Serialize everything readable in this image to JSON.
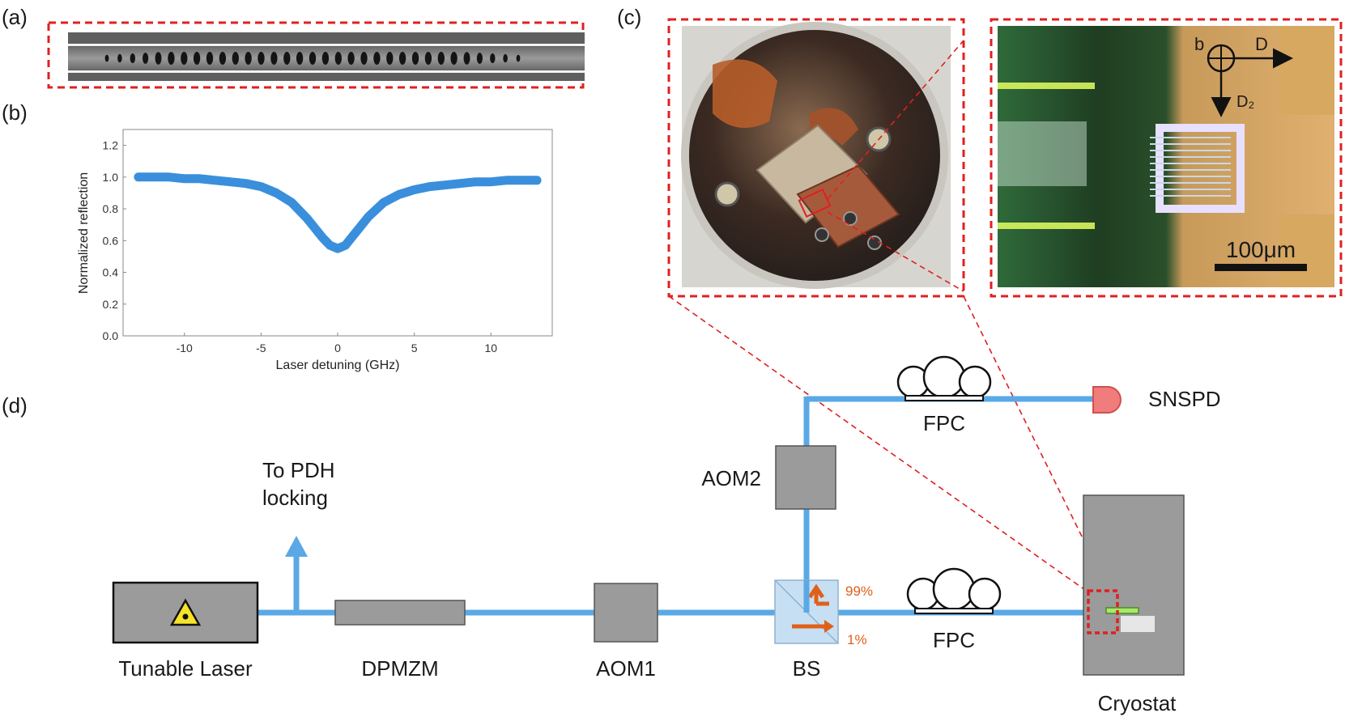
{
  "panels": {
    "a": "(a)",
    "b": "(b)",
    "c": "(c)",
    "d": "(d)"
  },
  "chart_data": {
    "type": "line",
    "title": "",
    "xlabel": "Laser detuning (GHz)",
    "ylabel": "Normalized reflection",
    "xlim": [
      -14,
      14
    ],
    "ylim": [
      0,
      1.3
    ],
    "xticks": [
      -10,
      -5,
      0,
      5,
      10
    ],
    "yticks": [
      0.0,
      0.2,
      0.4,
      0.6,
      0.8,
      1.0,
      1.2
    ],
    "ytick_labels": [
      "0.0",
      "0.2",
      "0.4",
      "0.6",
      "0.8",
      "1.0",
      "1.2"
    ],
    "grid": false,
    "series": [
      {
        "color": "#3a8fdc",
        "x": [
          -13,
          -12,
          -11,
          -10,
          -9,
          -8,
          -7,
          -6,
          -5,
          -4,
          -3,
          -2,
          -1.5,
          -1,
          -0.5,
          0,
          0.5,
          1,
          1.5,
          2,
          3,
          4,
          5,
          6,
          7,
          8,
          9,
          10,
          11,
          12,
          13
        ],
        "y": [
          1.0,
          1.0,
          1.0,
          0.99,
          0.99,
          0.98,
          0.97,
          0.96,
          0.94,
          0.9,
          0.84,
          0.74,
          0.68,
          0.62,
          0.57,
          0.55,
          0.57,
          0.63,
          0.69,
          0.75,
          0.84,
          0.89,
          0.92,
          0.94,
          0.95,
          0.96,
          0.97,
          0.97,
          0.98,
          0.98,
          0.98
        ]
      }
    ]
  },
  "micrograph": {
    "b_label": "b",
    "d1_label": "D",
    "d2_label": "D₂",
    "scale_label": "100μm"
  },
  "setup": {
    "tunable_laser": "Tunable Laser",
    "dpmzm": "DPMZM",
    "aom1": "AOM1",
    "aom2": "AOM2",
    "bs": "BS",
    "fpc_top": "FPC",
    "fpc_bottom": "FPC",
    "snspd": "SNSPD",
    "cryostat": "Cryostat",
    "pdh_line1": "To PDH",
    "pdh_line2": "locking",
    "pct_99": "99%",
    "pct_1": "1%"
  },
  "colors": {
    "fiber": "#5aa9e6",
    "red_dash": "#e02020",
    "component_gray": "#9b9b9b",
    "snspd_pink": "#f07c7c",
    "arrow_orange": "#e0601a"
  }
}
